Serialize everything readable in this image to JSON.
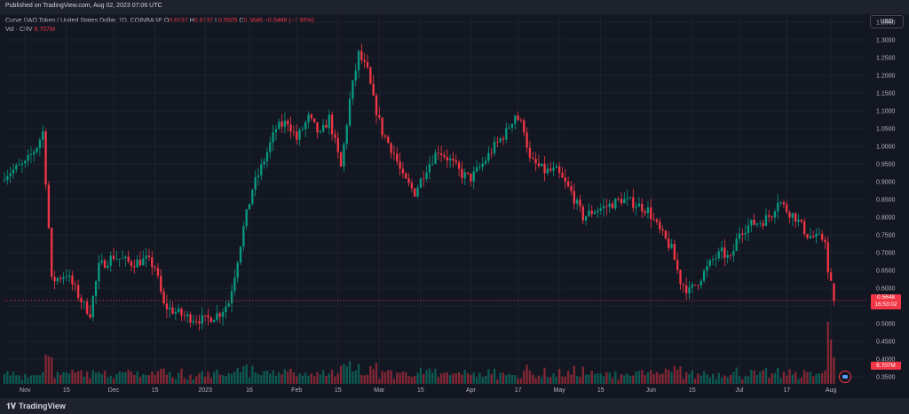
{
  "header": {
    "published": "Published on TradingView.com, Aug 02, 2023 07:06 UTC",
    "symbol": "Curve DAO Token / United States Dollar, 1D, COINBASE",
    "ohlc": {
      "o_label": "O",
      "o_value": "0.6137",
      "h_label": "H",
      "h_value": "0.6137",
      "l_label": "L",
      "l_value": "0.5505",
      "c_label": "C",
      "c_value": "0.5648",
      "change": "−0.0488 (−7.95%)"
    },
    "vol_label": "Vol · CRV",
    "vol_value": "6.707M"
  },
  "currency": "USD",
  "price_badge": {
    "price": "0.5648",
    "countdown": "16:53:02"
  },
  "volume_badge": "6.707M",
  "footer": {
    "brand": "TradingView"
  },
  "colors": {
    "up": "#089981",
    "down": "#f23645",
    "background": "#131722",
    "grid": "#1e222d"
  },
  "chart_data": {
    "type": "candlestick",
    "title": "",
    "y_axis": {
      "scale": "linear",
      "range": [
        0.33,
        1.37
      ],
      "ticks": [
        "1.3500",
        "1.3000",
        "1.2500",
        "1.2000",
        "1.1500",
        "1.1000",
        "1.0500",
        "1.0000",
        "0.9500",
        "0.9000",
        "0.8500",
        "0.8000",
        "0.7500",
        "0.7000",
        "0.6500",
        "0.6000",
        "0.5500",
        "0.5000",
        "0.4500",
        "0.4000",
        "0.3500"
      ],
      "position": "right"
    },
    "x_axis": {
      "range": [
        "2022-10-25",
        "2023-08-13"
      ],
      "ticks": [
        {
          "date": "2022-11-01",
          "label": "Nov"
        },
        {
          "date": "2022-11-15",
          "label": "15"
        },
        {
          "date": "2022-12-01",
          "label": "Dec"
        },
        {
          "date": "2022-12-15",
          "label": "15"
        },
        {
          "date": "2023-01-01",
          "label": "2023"
        },
        {
          "date": "2023-01-16",
          "label": "16"
        },
        {
          "date": "2023-02-01",
          "label": "Feb"
        },
        {
          "date": "2023-02-15",
          "label": "15"
        },
        {
          "date": "2023-03-01",
          "label": "Mar"
        },
        {
          "date": "2023-03-15",
          "label": "15"
        },
        {
          "date": "2023-04-01",
          "label": "Apr"
        },
        {
          "date": "2023-04-17",
          "label": "17"
        },
        {
          "date": "2023-05-01",
          "label": "May"
        },
        {
          "date": "2023-05-15",
          "label": "15"
        },
        {
          "date": "2023-06-01",
          "label": "Jun"
        },
        {
          "date": "2023-06-15",
          "label": "15"
        },
        {
          "date": "2023-07-01",
          "label": "Jul"
        },
        {
          "date": "2023-07-17",
          "label": "17"
        },
        {
          "date": "2023-08-01",
          "label": "Aug"
        }
      ]
    },
    "grid": true,
    "last_price_line": 0.5648,
    "closes": [
      {
        "date": "2022-10-25",
        "close": 0.92
      },
      {
        "date": "2022-11-01",
        "close": 0.95
      },
      {
        "date": "2022-11-05",
        "close": 1.0
      },
      {
        "date": "2022-11-07",
        "close": 1.04
      },
      {
        "date": "2022-11-09",
        "close": 0.77
      },
      {
        "date": "2022-11-10",
        "close": 0.62
      },
      {
        "date": "2022-11-15",
        "close": 0.64
      },
      {
        "date": "2022-11-21",
        "close": 0.55
      },
      {
        "date": "2022-11-23",
        "close": 0.53
      },
      {
        "date": "2022-11-26",
        "close": 0.66
      },
      {
        "date": "2022-12-01",
        "close": 0.69
      },
      {
        "date": "2022-12-07",
        "close": 0.67
      },
      {
        "date": "2022-12-12",
        "close": 0.68
      },
      {
        "date": "2022-12-15",
        "close": 0.66
      },
      {
        "date": "2022-12-18",
        "close": 0.55
      },
      {
        "date": "2022-12-25",
        "close": 0.52
      },
      {
        "date": "2023-01-01",
        "close": 0.51
      },
      {
        "date": "2023-01-06",
        "close": 0.53
      },
      {
        "date": "2023-01-09",
        "close": 0.56
      },
      {
        "date": "2023-01-11",
        "close": 0.64
      },
      {
        "date": "2023-01-14",
        "close": 0.77
      },
      {
        "date": "2023-01-17",
        "close": 0.88
      },
      {
        "date": "2023-01-20",
        "close": 0.94
      },
      {
        "date": "2023-01-25",
        "close": 1.05
      },
      {
        "date": "2023-01-29",
        "close": 1.07
      },
      {
        "date": "2023-02-01",
        "close": 1.02
      },
      {
        "date": "2023-02-05",
        "close": 1.08
      },
      {
        "date": "2023-02-09",
        "close": 1.03
      },
      {
        "date": "2023-02-12",
        "close": 1.08
      },
      {
        "date": "2023-02-16",
        "close": 0.94
      },
      {
        "date": "2023-02-19",
        "close": 1.13
      },
      {
        "date": "2023-02-22",
        "close": 1.26
      },
      {
        "date": "2023-02-25",
        "close": 1.21
      },
      {
        "date": "2023-02-27",
        "close": 1.13
      },
      {
        "date": "2023-03-02",
        "close": 1.04
      },
      {
        "date": "2023-03-06",
        "close": 0.98
      },
      {
        "date": "2023-03-09",
        "close": 0.91
      },
      {
        "date": "2023-03-13",
        "close": 0.87
      },
      {
        "date": "2023-03-17",
        "close": 0.94
      },
      {
        "date": "2023-03-21",
        "close": 0.99
      },
      {
        "date": "2023-03-25",
        "close": 0.96
      },
      {
        "date": "2023-03-29",
        "close": 0.92
      },
      {
        "date": "2023-04-01",
        "close": 0.91
      },
      {
        "date": "2023-04-05",
        "close": 0.95
      },
      {
        "date": "2023-04-09",
        "close": 1.0
      },
      {
        "date": "2023-04-13",
        "close": 1.04
      },
      {
        "date": "2023-04-16",
        "close": 1.09
      },
      {
        "date": "2023-04-19",
        "close": 1.05
      },
      {
        "date": "2023-04-21",
        "close": 0.96
      },
      {
        "date": "2023-04-26",
        "close": 0.93
      },
      {
        "date": "2023-04-30",
        "close": 0.93
      },
      {
        "date": "2023-05-05",
        "close": 0.87
      },
      {
        "date": "2023-05-09",
        "close": 0.8
      },
      {
        "date": "2023-05-13",
        "close": 0.82
      },
      {
        "date": "2023-05-17",
        "close": 0.83
      },
      {
        "date": "2023-05-22",
        "close": 0.85
      },
      {
        "date": "2023-05-26",
        "close": 0.84
      },
      {
        "date": "2023-05-31",
        "close": 0.82
      },
      {
        "date": "2023-06-04",
        "close": 0.76
      },
      {
        "date": "2023-06-08",
        "close": 0.71
      },
      {
        "date": "2023-06-11",
        "close": 0.62
      },
      {
        "date": "2023-06-14",
        "close": 0.59
      },
      {
        "date": "2023-06-17",
        "close": 0.62
      },
      {
        "date": "2023-06-22",
        "close": 0.68
      },
      {
        "date": "2023-06-25",
        "close": 0.7
      },
      {
        "date": "2023-06-28",
        "close": 0.68
      },
      {
        "date": "2023-07-01",
        "close": 0.76
      },
      {
        "date": "2023-07-05",
        "close": 0.78
      },
      {
        "date": "2023-07-09",
        "close": 0.79
      },
      {
        "date": "2023-07-12",
        "close": 0.81
      },
      {
        "date": "2023-07-14",
        "close": 0.85
      },
      {
        "date": "2023-07-17",
        "close": 0.82
      },
      {
        "date": "2023-07-20",
        "close": 0.8
      },
      {
        "date": "2023-07-24",
        "close": 0.75
      },
      {
        "date": "2023-07-27",
        "close": 0.74
      },
      {
        "date": "2023-07-30",
        "close": 0.74
      },
      {
        "date": "2023-07-31",
        "close": 0.64
      },
      {
        "date": "2023-08-01",
        "close": 0.61
      },
      {
        "date": "2023-08-02",
        "close": 0.5648
      }
    ]
  }
}
